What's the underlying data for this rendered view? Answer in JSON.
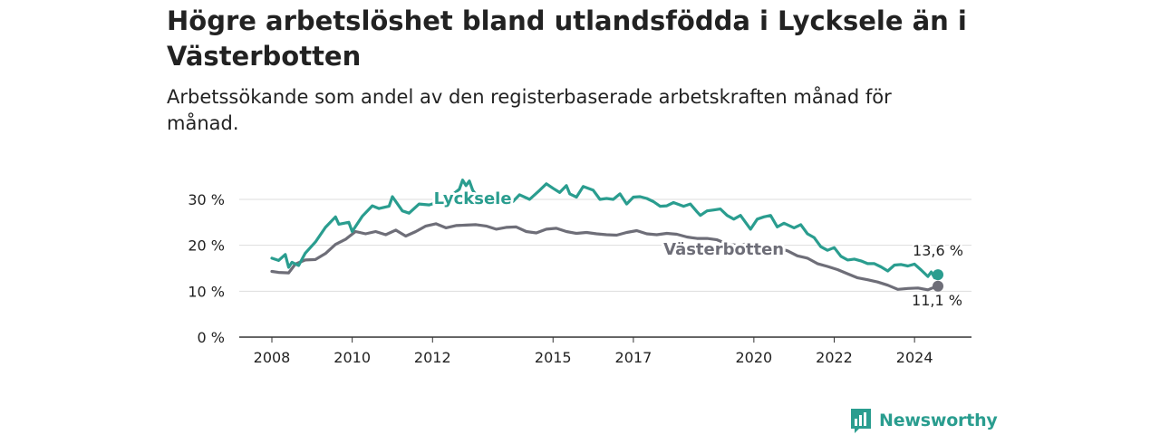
{
  "title": "Högre arbetslöshet bland utlandsfödda i Lycksele än i Västerbotten",
  "subtitle": "Arbetssökande som andel av den registerbaserade arbetskraften månad för månad.",
  "brand": {
    "name": "Newsworthy",
    "color": "#2a9d8f"
  },
  "chart_data": {
    "type": "line",
    "x_start": "2008-01",
    "x_end": "2024-08",
    "ylim": [
      0,
      30
    ],
    "grid": true,
    "yticks": [
      {
        "value": 0,
        "label": "0 %"
      },
      {
        "value": 10,
        "label": "10 %"
      },
      {
        "value": 20,
        "label": "20 %"
      },
      {
        "value": 30,
        "label": "30 %"
      }
    ],
    "xticks": [
      {
        "date": "2008-01",
        "label": "2008"
      },
      {
        "date": "2010-01",
        "label": "2010"
      },
      {
        "date": "2012-01",
        "label": "2012"
      },
      {
        "date": "2015-01",
        "label": "2015"
      },
      {
        "date": "2017-01",
        "label": "2017"
      },
      {
        "date": "2020-01",
        "label": "2020"
      },
      {
        "date": "2022-01",
        "label": "2022"
      },
      {
        "date": "2024-01",
        "label": "2024"
      }
    ],
    "series": [
      {
        "name": "Lycksele",
        "color": "#2a9d8f",
        "last_label": "13,6 %",
        "points": [
          [
            "2008-01",
            17.2
          ],
          [
            "2008-03",
            16.7
          ],
          [
            "2008-05",
            18.0
          ],
          [
            "2008-06",
            15.2
          ],
          [
            "2008-07",
            16.3
          ],
          [
            "2008-09",
            15.6
          ],
          [
            "2008-11",
            18.3
          ],
          [
            "2009-02",
            20.7
          ],
          [
            "2009-05",
            23.9
          ],
          [
            "2009-08",
            26.2
          ],
          [
            "2009-09",
            24.6
          ],
          [
            "2009-12",
            25.0
          ],
          [
            "2010-01",
            23.0
          ],
          [
            "2010-04",
            26.3
          ],
          [
            "2010-07",
            28.6
          ],
          [
            "2010-09",
            28.0
          ],
          [
            "2010-12",
            28.5
          ],
          [
            "2011-01",
            30.6
          ],
          [
            "2011-04",
            27.5
          ],
          [
            "2011-06",
            27.0
          ],
          [
            "2011-09",
            29.0
          ],
          [
            "2011-12",
            28.8
          ],
          [
            "2012-03",
            29.5
          ],
          [
            "2012-05",
            29.0
          ],
          [
            "2012-06",
            30.5
          ],
          [
            "2012-09",
            32.2
          ],
          [
            "2012-10",
            34.2
          ],
          [
            "2012-11",
            33.0
          ],
          [
            "2012-12",
            34.0
          ],
          [
            "2013-01",
            32.0
          ],
          [
            "2013-02",
            31.0
          ],
          [
            "2013-04",
            29.6
          ],
          [
            "2013-06",
            29.5
          ],
          [
            "2013-08",
            30.5
          ],
          [
            "2013-10",
            30.2
          ],
          [
            "2014-01",
            29.5
          ],
          [
            "2014-03",
            31.0
          ],
          [
            "2014-06",
            30.0
          ],
          [
            "2014-09",
            32.0
          ],
          [
            "2014-11",
            33.4
          ],
          [
            "2015-01",
            32.4
          ],
          [
            "2015-03",
            31.5
          ],
          [
            "2015-05",
            33.0
          ],
          [
            "2015-06",
            31.2
          ],
          [
            "2015-08",
            30.5
          ],
          [
            "2015-10",
            32.8
          ],
          [
            "2016-01",
            32.0
          ],
          [
            "2016-03",
            30.0
          ],
          [
            "2016-05",
            30.2
          ],
          [
            "2016-07",
            30.0
          ],
          [
            "2016-09",
            31.2
          ],
          [
            "2016-11",
            29.0
          ],
          [
            "2017-01",
            30.5
          ],
          [
            "2017-03",
            30.6
          ],
          [
            "2017-05",
            30.2
          ],
          [
            "2017-07",
            29.5
          ],
          [
            "2017-09",
            28.5
          ],
          [
            "2017-11",
            28.6
          ],
          [
            "2018-01",
            29.3
          ],
          [
            "2018-04",
            28.5
          ],
          [
            "2018-06",
            29.0
          ],
          [
            "2018-08",
            27.3
          ],
          [
            "2018-09",
            26.5
          ],
          [
            "2018-11",
            27.5
          ],
          [
            "2019-01",
            27.7
          ],
          [
            "2019-03",
            27.9
          ],
          [
            "2019-05",
            26.5
          ],
          [
            "2019-07",
            25.7
          ],
          [
            "2019-09",
            26.5
          ],
          [
            "2019-12",
            23.5
          ],
          [
            "2020-02",
            25.7
          ],
          [
            "2020-04",
            26.2
          ],
          [
            "2020-06",
            26.5
          ],
          [
            "2020-08",
            24.0
          ],
          [
            "2020-10",
            24.8
          ],
          [
            "2021-01",
            23.8
          ],
          [
            "2021-03",
            24.5
          ],
          [
            "2021-05",
            22.5
          ],
          [
            "2021-07",
            21.7
          ],
          [
            "2021-09",
            19.7
          ],
          [
            "2021-11",
            18.9
          ],
          [
            "2022-01",
            19.5
          ],
          [
            "2022-03",
            17.6
          ],
          [
            "2022-05",
            16.8
          ],
          [
            "2022-07",
            17.0
          ],
          [
            "2022-09",
            16.6
          ],
          [
            "2022-11",
            16.0
          ],
          [
            "2023-01",
            16.0
          ],
          [
            "2023-03",
            15.3
          ],
          [
            "2023-05",
            14.4
          ],
          [
            "2023-07",
            15.7
          ],
          [
            "2023-09",
            15.8
          ],
          [
            "2023-11",
            15.5
          ],
          [
            "2024-01",
            15.9
          ],
          [
            "2024-03",
            14.6
          ],
          [
            "2024-05",
            13.2
          ],
          [
            "2024-06",
            14.2
          ],
          [
            "2024-07",
            12.9
          ],
          [
            "2024-08",
            13.6
          ]
        ]
      },
      {
        "name": "Västerbotten",
        "color": "#6e6e78",
        "last_label": "11,1 %",
        "points": [
          [
            "2008-01",
            14.3
          ],
          [
            "2008-03",
            14.1
          ],
          [
            "2008-06",
            14.0
          ],
          [
            "2008-08",
            15.9
          ],
          [
            "2008-11",
            16.8
          ],
          [
            "2009-02",
            16.9
          ],
          [
            "2009-05",
            18.2
          ],
          [
            "2009-08",
            20.2
          ],
          [
            "2009-11",
            21.3
          ],
          [
            "2010-02",
            23.0
          ],
          [
            "2010-05",
            22.5
          ],
          [
            "2010-08",
            23.0
          ],
          [
            "2010-11",
            22.3
          ],
          [
            "2011-02",
            23.3
          ],
          [
            "2011-05",
            22.0
          ],
          [
            "2011-08",
            23.0
          ],
          [
            "2011-11",
            24.2
          ],
          [
            "2012-02",
            24.7
          ],
          [
            "2012-05",
            23.8
          ],
          [
            "2012-08",
            24.3
          ],
          [
            "2012-11",
            24.4
          ],
          [
            "2013-02",
            24.5
          ],
          [
            "2013-05",
            24.2
          ],
          [
            "2013-08",
            23.5
          ],
          [
            "2013-11",
            23.9
          ],
          [
            "2014-02",
            24.0
          ],
          [
            "2014-05",
            23.0
          ],
          [
            "2014-08",
            22.7
          ],
          [
            "2014-11",
            23.5
          ],
          [
            "2015-02",
            23.7
          ],
          [
            "2015-05",
            23.0
          ],
          [
            "2015-08",
            22.6
          ],
          [
            "2015-11",
            22.8
          ],
          [
            "2016-02",
            22.5
          ],
          [
            "2016-05",
            22.3
          ],
          [
            "2016-08",
            22.2
          ],
          [
            "2016-11",
            22.8
          ],
          [
            "2017-02",
            23.2
          ],
          [
            "2017-05",
            22.5
          ],
          [
            "2017-08",
            22.3
          ],
          [
            "2017-11",
            22.6
          ],
          [
            "2018-02",
            22.4
          ],
          [
            "2018-05",
            21.8
          ],
          [
            "2018-08",
            21.5
          ],
          [
            "2018-11",
            21.5
          ],
          [
            "2019-02",
            21.2
          ],
          [
            "2019-05",
            20.3
          ],
          [
            "2019-08",
            20.0
          ],
          [
            "2019-11",
            20.3
          ],
          [
            "2020-02",
            20.0
          ],
          [
            "2020-05",
            19.9
          ],
          [
            "2020-08",
            19.4
          ],
          [
            "2020-11",
            18.8
          ],
          [
            "2021-02",
            17.7
          ],
          [
            "2021-05",
            17.2
          ],
          [
            "2021-08",
            16.0
          ],
          [
            "2021-11",
            15.4
          ],
          [
            "2022-02",
            14.7
          ],
          [
            "2022-05",
            13.8
          ],
          [
            "2022-08",
            12.9
          ],
          [
            "2022-11",
            12.5
          ],
          [
            "2023-02",
            12.0
          ],
          [
            "2023-05",
            11.3
          ],
          [
            "2023-08",
            10.4
          ],
          [
            "2023-11",
            10.6
          ],
          [
            "2024-02",
            10.7
          ],
          [
            "2024-05",
            10.3
          ],
          [
            "2024-07",
            10.9
          ],
          [
            "2024-08",
            11.1
          ]
        ]
      }
    ]
  }
}
